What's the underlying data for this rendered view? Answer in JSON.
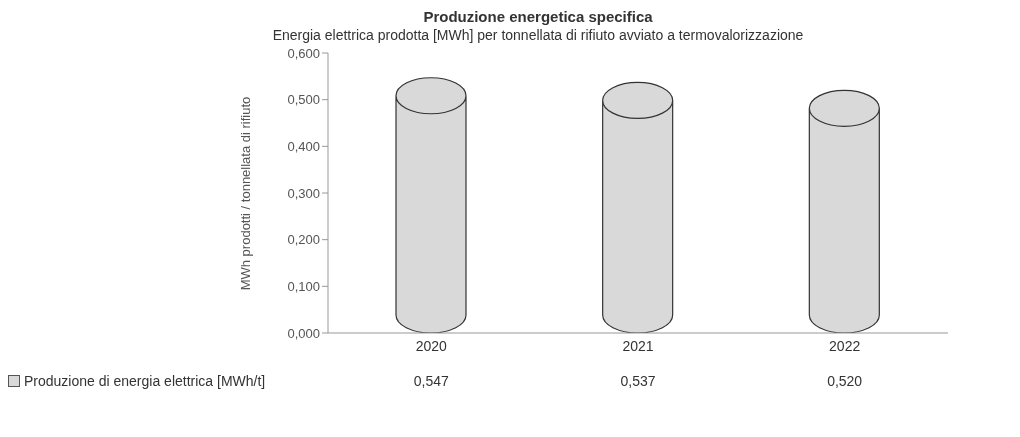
{
  "chart_data": {
    "type": "bar",
    "title": "Produzione energetica specifica",
    "subtitle": "Energia elettrica prodotta [MWh] per tonnellata di rifiuto avviato a termovalorizzazione",
    "ylabel": "MWh prodotti / tonnellata di rifiuto",
    "categories": [
      "2020",
      "2021",
      "2022"
    ],
    "series": [
      {
        "name": "Produzione di energia elettrica [MWh/t]",
        "color": "#d9d9d9",
        "values": [
          0.547,
          0.537,
          0.52
        ],
        "value_labels": [
          "0,547",
          "0,537",
          "0,520"
        ]
      }
    ],
    "ylim": [
      0,
      0.6
    ],
    "yticks": [
      {
        "value": 0,
        "label": "0,000"
      },
      {
        "value": 0.1,
        "label": "0,100"
      },
      {
        "value": 0.2,
        "label": "0,200"
      },
      {
        "value": 0.3,
        "label": "0,300"
      },
      {
        "value": 0.4,
        "label": "0,400"
      },
      {
        "value": 0.5,
        "label": "0,500"
      },
      {
        "value": 0.6,
        "label": "0,600"
      }
    ],
    "grid": false,
    "legend": "bottom"
  }
}
